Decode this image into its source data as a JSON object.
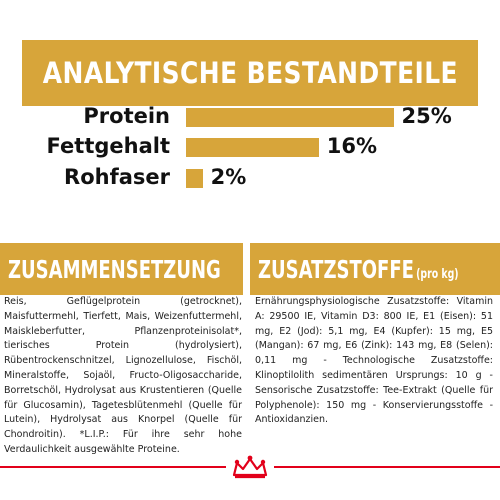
{
  "header": {
    "title": "ANALYTISCHE BESTANDTEILE"
  },
  "nutrients": [
    {
      "label": "Protein",
      "value": "25%",
      "percent": 25
    },
    {
      "label": "Fettgehalt",
      "value": "16%",
      "percent": 16
    },
    {
      "label": "Rohfaser",
      "value": "2%",
      "percent": 2
    }
  ],
  "composition": {
    "title": "ZUSAMMENSETZUNG",
    "text": "Reis, Geflügelprotein (getrocknet), Maisfuttermehl, Tierfett, Mais, Weizenfuttermehl, Maiskleberfutter, Pflanzenproteinisolat*, tierisches Protein (hydrolysiert), Rübentrockenschnitzel, Lignozellulose, Fischöl, Mineralstoffe, Sojaöl, Fructo-Oligosaccharide, Borretschöl, Hydrolysat aus Krustentieren (Quelle für Glucosamin), Tagetesblütenmehl (Quelle für Lutein), Hydrolysat aus Knorpel (Quelle für Chondroitin). *L.I.P.: Für ihre sehr hohe Verdaulichkeit ausgewählte Proteine."
  },
  "additives": {
    "title": "ZUSATZSTOFFE",
    "subtitle": "(pro kg)",
    "text": "Ernährungsphysiologische Zusatzstoffe: Vitamin A: 29500 IE, Vitamin D3: 800 IE, E1 (Eisen): 51 mg, E2 (Jod): 5,1 mg, E4 (Kupfer): 15 mg, E5 (Mangan): 67 mg, E6 (Zink): 143 mg, E8 (Selen): 0,11 mg - Technologische Zusatzstoffe: Klinoptilolith sedimentären Ursprungs: 10 g - Sensorische Zusatzstoffe: Tee-Extrakt (Quelle für Polyphenole): 150 mg - Konservierungsstoffe - Antioxidanzien."
  },
  "colors": {
    "accent": "#d7a53a",
    "brand_red": "#e2001a",
    "text": "#111111"
  },
  "icons": {
    "footer": "crown-icon"
  }
}
